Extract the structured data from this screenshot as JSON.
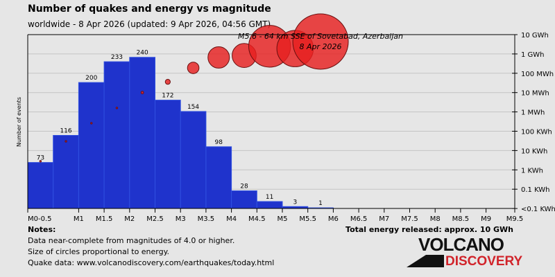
{
  "title": "Number of quakes and energy vs magnitude",
  "subtitle": "worldwide -  8 Apr 2026 (updated: 9 Apr 2026, 04:56 GMT)",
  "annotation": {
    "line1": "M5.6 - 64 km SSE of Sovetabad, Azerbaijan",
    "line2": "8 Apr 2026"
  },
  "notes": {
    "heading": "Notes:",
    "lines": [
      "Data near-complete from magnitudes of 4.0 or higher.",
      "Size of circles proportional to energy.",
      "Quake data: www.volcanodiscovery.com/earthquakes/today.html"
    ]
  },
  "total_energy": "Total energy released: approx. 10 GWh",
  "logo": {
    "line1": "VOLCANO",
    "line2": "DISCOVERY"
  },
  "colors": {
    "bar": "#1f33cc",
    "circle": "#e62020",
    "bg": "#e6e6e6"
  },
  "chart_data": {
    "type": "bar",
    "title": "Number of quakes and energy vs magnitude",
    "ylabel": "Number of events",
    "bins": [
      "0-0.5",
      "0.5-1",
      "1-1.5",
      "1.5-2",
      "2-2.5",
      "2.5-3",
      "3-3.5",
      "3.5-4",
      "4-4.5",
      "4.5-5",
      "5-5.5",
      "5.5-6"
    ],
    "values": [
      73,
      116,
      200,
      233,
      240,
      172,
      154,
      98,
      28,
      11,
      3,
      1
    ],
    "energy_kwh": [
      2.8,
      30,
      260,
      1600,
      10000,
      36000,
      190000,
      660000,
      830000,
      2500000,
      1900000,
      4400000
    ],
    "x_ticks": [
      "M0-0.5",
      "M1",
      "M1.5",
      "M2",
      "M2.5",
      "M3",
      "M3.5",
      "M4",
      "M4.5",
      "M5",
      "M5.5",
      "M6",
      "M6.5",
      "M7",
      "M7.5",
      "M8",
      "M8.5",
      "M9",
      "M9.5"
    ],
    "energy_axis": [
      "10 GWh",
      "1 GWh",
      "100 MWh",
      "10 MWh",
      "1 MWh",
      "100 KWh",
      "10 KWh",
      "1 KWh",
      "0.1 KWh",
      "<0.1 KWh"
    ],
    "ylim": [
      0,
      276
    ]
  }
}
